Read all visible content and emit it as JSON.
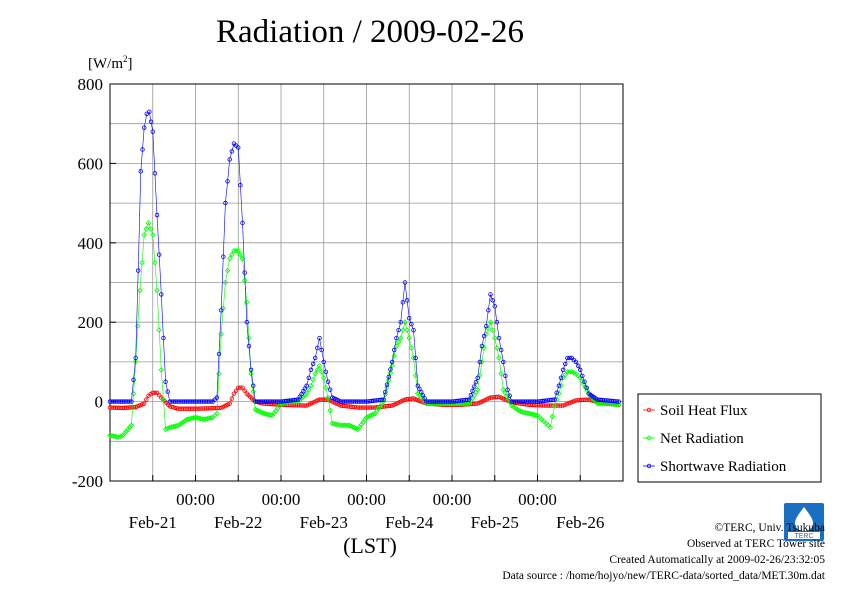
{
  "title": "Radiation / 2009-02-26",
  "unit_label": "[W/m",
  "unit_sup": "2",
  "unit_close": "]",
  "x_axis_label": "(LST)",
  "credits": {
    "copyright": "©TERC, Univ. Tsukuba",
    "site": "Observed at TERC Tower site",
    "created": "Created Automatically at 2009-02-26/23:32:05",
    "source": "Data source : /home/hojyo/new/TERC-data/sorted_data/MET.30m.dat"
  },
  "logo_text": "TERC",
  "colors": {
    "soil": "#ff0000",
    "net": "#00ff00",
    "shortwave": "#0000ff",
    "grid": "#999999",
    "logo": "#1a6fc0"
  },
  "chart_data": {
    "type": "line",
    "ylim": [
      -200,
      800
    ],
    "yticks": [
      "800",
      "600",
      "400",
      "200",
      "0",
      "-200"
    ],
    "ytick_values": [
      800,
      600,
      400,
      200,
      0,
      -200
    ],
    "xlim_days": [
      0,
      6
    ],
    "time_ticks": [
      "00:00",
      "00:00",
      "00:00",
      "00:00",
      "00:00"
    ],
    "date_labels": [
      "Feb-21",
      "Feb-22",
      "Feb-23",
      "Feb-24",
      "Feb-25",
      "Feb-26"
    ],
    "legend_position": "bottom-right outside",
    "grid": true,
    "series": [
      {
        "name": "Soil Heat Flux",
        "marker": "circle",
        "points": [
          [
            0.0,
            -15
          ],
          [
            0.15,
            -16
          ],
          [
            0.3,
            -14
          ],
          [
            0.4,
            -5
          ],
          [
            0.45,
            15
          ],
          [
            0.5,
            22
          ],
          [
            0.55,
            22
          ],
          [
            0.6,
            10
          ],
          [
            0.7,
            -12
          ],
          [
            0.8,
            -18
          ],
          [
            1.0,
            -18
          ],
          [
            1.3,
            -16
          ],
          [
            1.4,
            -5
          ],
          [
            1.45,
            20
          ],
          [
            1.5,
            35
          ],
          [
            1.55,
            35
          ],
          [
            1.6,
            20
          ],
          [
            1.7,
            0
          ],
          [
            1.8,
            -5
          ],
          [
            2.0,
            -8
          ],
          [
            2.3,
            -10
          ],
          [
            2.45,
            5
          ],
          [
            2.55,
            5
          ],
          [
            2.7,
            -10
          ],
          [
            2.9,
            -15
          ],
          [
            3.1,
            -15
          ],
          [
            3.3,
            -10
          ],
          [
            3.45,
            5
          ],
          [
            3.55,
            8
          ],
          [
            3.7,
            -5
          ],
          [
            3.9,
            -8
          ],
          [
            4.1,
            -8
          ],
          [
            4.3,
            -5
          ],
          [
            4.45,
            10
          ],
          [
            4.55,
            12
          ],
          [
            4.7,
            -2
          ],
          [
            4.9,
            -8
          ],
          [
            5.1,
            -10
          ],
          [
            5.3,
            -10
          ],
          [
            5.45,
            3
          ],
          [
            5.6,
            5
          ],
          [
            5.75,
            -3
          ],
          [
            5.95,
            -8
          ]
        ]
      },
      {
        "name": "Net Radiation",
        "marker": "diamond",
        "points": [
          [
            0.0,
            -85
          ],
          [
            0.1,
            -90
          ],
          [
            0.15,
            -85
          ],
          [
            0.25,
            -60
          ],
          [
            0.3,
            100
          ],
          [
            0.35,
            280
          ],
          [
            0.4,
            420
          ],
          [
            0.45,
            450
          ],
          [
            0.5,
            420
          ],
          [
            0.55,
            280
          ],
          [
            0.6,
            80
          ],
          [
            0.65,
            -70
          ],
          [
            0.7,
            -65
          ],
          [
            0.8,
            -60
          ],
          [
            0.9,
            -45
          ],
          [
            1.0,
            -40
          ],
          [
            1.1,
            -45
          ],
          [
            1.2,
            -40
          ],
          [
            1.25,
            -30
          ],
          [
            1.3,
            170
          ],
          [
            1.35,
            300
          ],
          [
            1.4,
            360
          ],
          [
            1.45,
            380
          ],
          [
            1.5,
            380
          ],
          [
            1.55,
            360
          ],
          [
            1.6,
            250
          ],
          [
            1.65,
            70
          ],
          [
            1.7,
            -20
          ],
          [
            1.8,
            -30
          ],
          [
            1.9,
            -35
          ],
          [
            2.0,
            -5
          ],
          [
            2.1,
            0
          ],
          [
            2.2,
            0
          ],
          [
            2.3,
            20
          ],
          [
            2.35,
            40
          ],
          [
            2.4,
            70
          ],
          [
            2.45,
            90
          ],
          [
            2.5,
            60
          ],
          [
            2.55,
            10
          ],
          [
            2.6,
            -55
          ],
          [
            2.7,
            -60
          ],
          [
            2.8,
            -60
          ],
          [
            2.9,
            -70
          ],
          [
            3.0,
            -40
          ],
          [
            3.1,
            -30
          ],
          [
            3.2,
            0
          ],
          [
            3.3,
            90
          ],
          [
            3.35,
            140
          ],
          [
            3.4,
            160
          ],
          [
            3.45,
            200
          ],
          [
            3.5,
            160
          ],
          [
            3.55,
            110
          ],
          [
            3.6,
            20
          ],
          [
            3.7,
            -5
          ],
          [
            3.8,
            -5
          ],
          [
            4.0,
            -5
          ],
          [
            4.2,
            -5
          ],
          [
            4.3,
            30
          ],
          [
            4.35,
            100
          ],
          [
            4.4,
            170
          ],
          [
            4.45,
            200
          ],
          [
            4.5,
            160
          ],
          [
            4.55,
            110
          ],
          [
            4.6,
            30
          ],
          [
            4.7,
            -10
          ],
          [
            4.8,
            -25
          ],
          [
            4.9,
            -30
          ],
          [
            5.0,
            -35
          ],
          [
            5.05,
            -45
          ],
          [
            5.1,
            -55
          ],
          [
            5.15,
            -65
          ],
          [
            5.2,
            -10
          ],
          [
            5.25,
            20
          ],
          [
            5.3,
            60
          ],
          [
            5.35,
            75
          ],
          [
            5.4,
            75
          ],
          [
            5.45,
            70
          ],
          [
            5.5,
            60
          ],
          [
            5.6,
            20
          ],
          [
            5.7,
            -5
          ],
          [
            5.8,
            -5
          ],
          [
            5.95,
            -8
          ]
        ]
      },
      {
        "name": "Shortwave Radiation",
        "marker": "circle",
        "points": [
          [
            0.0,
            0
          ],
          [
            0.25,
            0
          ],
          [
            0.3,
            110
          ],
          [
            0.33,
            330
          ],
          [
            0.36,
            580
          ],
          [
            0.4,
            690
          ],
          [
            0.43,
            725
          ],
          [
            0.46,
            730
          ],
          [
            0.5,
            680
          ],
          [
            0.55,
            470
          ],
          [
            0.6,
            270
          ],
          [
            0.65,
            50
          ],
          [
            0.7,
            0
          ],
          [
            1.0,
            0
          ],
          [
            1.2,
            0
          ],
          [
            1.25,
            10
          ],
          [
            1.3,
            230
          ],
          [
            1.35,
            500
          ],
          [
            1.4,
            610
          ],
          [
            1.45,
            650
          ],
          [
            1.5,
            640
          ],
          [
            1.55,
            450
          ],
          [
            1.6,
            200
          ],
          [
            1.65,
            80
          ],
          [
            1.7,
            0
          ],
          [
            2.0,
            0
          ],
          [
            2.2,
            5
          ],
          [
            2.3,
            40
          ],
          [
            2.35,
            80
          ],
          [
            2.4,
            110
          ],
          [
            2.45,
            160
          ],
          [
            2.5,
            100
          ],
          [
            2.55,
            50
          ],
          [
            2.6,
            10
          ],
          [
            2.7,
            0
          ],
          [
            3.0,
            0
          ],
          [
            3.2,
            5
          ],
          [
            3.3,
            100
          ],
          [
            3.35,
            160
          ],
          [
            3.4,
            200
          ],
          [
            3.45,
            300
          ],
          [
            3.5,
            210
          ],
          [
            3.55,
            180
          ],
          [
            3.6,
            40
          ],
          [
            3.7,
            0
          ],
          [
            4.0,
            0
          ],
          [
            4.2,
            5
          ],
          [
            4.3,
            60
          ],
          [
            4.35,
            140
          ],
          [
            4.4,
            190
          ],
          [
            4.45,
            270
          ],
          [
            4.5,
            240
          ],
          [
            4.55,
            160
          ],
          [
            4.6,
            100
          ],
          [
            4.65,
            30
          ],
          [
            4.7,
            0
          ],
          [
            5.0,
            0
          ],
          [
            5.2,
            5
          ],
          [
            5.25,
            40
          ],
          [
            5.3,
            80
          ],
          [
            5.35,
            110
          ],
          [
            5.4,
            110
          ],
          [
            5.45,
            100
          ],
          [
            5.5,
            80
          ],
          [
            5.55,
            50
          ],
          [
            5.6,
            20
          ],
          [
            5.7,
            5
          ],
          [
            5.95,
            0
          ]
        ]
      }
    ]
  }
}
